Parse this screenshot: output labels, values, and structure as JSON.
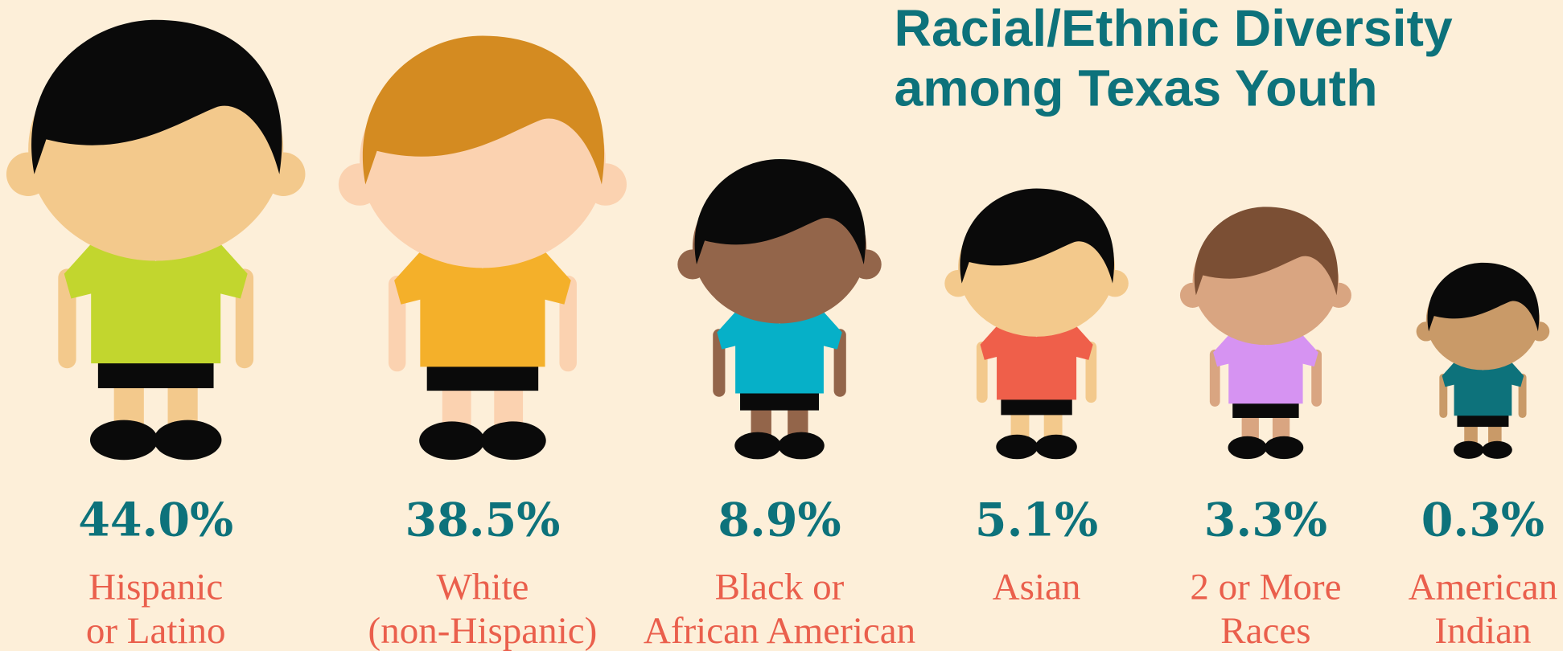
{
  "chart_data": {
    "type": "pictogram",
    "title": [
      "Racial/Ethnic Diversity",
      "among Texas Youth"
    ],
    "categories": [
      [
        "Hispanic",
        "or Latino"
      ],
      [
        "White",
        "(non-Hispanic)"
      ],
      [
        "Black or",
        "African American"
      ],
      [
        "Asian"
      ],
      [
        "2 or More",
        "Races"
      ],
      [
        "American",
        "Indian"
      ]
    ],
    "values": [
      44.0,
      38.5,
      8.9,
      5.1,
      3.3,
      0.3
    ],
    "value_labels": [
      "44.0%",
      "38.5%",
      "8.9%",
      "5.1%",
      "3.3%",
      "0.3%"
    ],
    "colors": [
      "#c2d62e",
      "#f4b02a",
      "#06b0c8",
      "#ef5f4a",
      "#d693f2",
      "#0d727b"
    ],
    "skin_colors": [
      "#f3c98c",
      "#fbd2b0",
      "#93654a",
      "#f3c98c",
      "#d9a581",
      "#c99a68"
    ],
    "hair_colors": [
      "#0a0a0a",
      "#d48b21",
      "#0a0a0a",
      "#0a0a0a",
      "#7b4f34",
      "#0a0a0a"
    ]
  }
}
